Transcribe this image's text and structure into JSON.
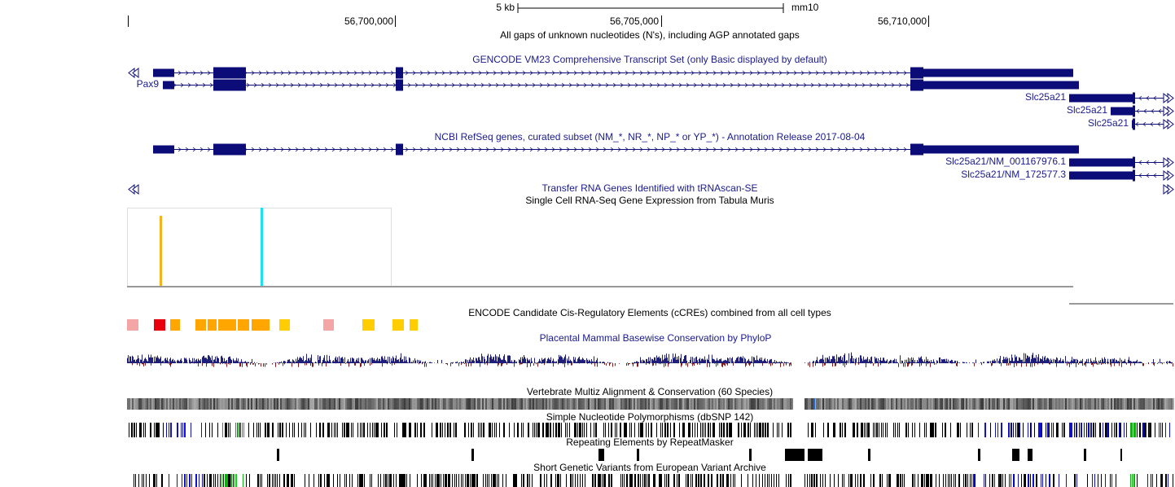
{
  "ruler": {
    "scale_label": "5 kb",
    "assembly": "mm10",
    "positions": [
      "56,700,000",
      "56,705,000",
      "56,710,000"
    ]
  },
  "tracks": {
    "gaps": {
      "title": "All gaps of unknown nucleotides (N's), including AGP annotated gaps"
    },
    "gencode": {
      "title": "GENCODE VM23 Comprehensive Transcript Set (only Basic displayed by default)",
      "labels": [
        "Pax9",
        "Slc25a21",
        "Slc25a21",
        "Slc25a21"
      ]
    },
    "refseq": {
      "title": "NCBI RefSeq genes, curated subset (NM_*, NR_*, NP_* or YP_*) - Annotation Release 2017-08-04",
      "labels": [
        "Slc25a21/NM_001167976.1",
        "Slc25a21/NM_172577.3"
      ]
    },
    "trna": {
      "title": "Transfer RNA Genes Identified with tRNAscan-SE"
    },
    "tabula_muris": {
      "title": "Single Cell RNA-Seq Gene Expression from Tabula Muris"
    },
    "encode_ccre": {
      "title": "ENCODE Candidate Cis-Regulatory Elements (cCREs) combined from all cell types"
    },
    "phylop": {
      "title": "Placental Mammal Basewise Conservation by PhyloP"
    },
    "multiz": {
      "title": "Vertebrate Multiz Alignment & Conservation (60 Species)"
    },
    "dbsnp": {
      "title": "Simple Nucleotide Polymorphisms (dbSNP 142)"
    },
    "repeatmasker": {
      "title": "Repeating Elements by RepeatMasker"
    },
    "eva": {
      "title": "Short Genetic Variants from European Variant Archive"
    }
  }
}
